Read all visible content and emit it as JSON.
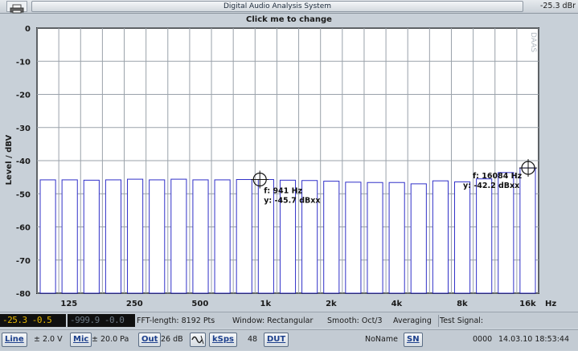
{
  "window": {
    "title": "Digital Audio Analysis System",
    "readout": "-25.3 dBr",
    "icon": "printer-icon"
  },
  "plot": {
    "click_hint": "Click me to change",
    "watermark": "DAAS",
    "colors": {
      "bar": "#3030c8",
      "grid": "#9aa2aa",
      "background": "#ffffff"
    }
  },
  "chart_data": {
    "type": "bar",
    "ylabel": "Level / dBV",
    "xlabel": "",
    "x_unit": "Hz",
    "ylim": [
      -80,
      0
    ],
    "yticks": [
      0,
      -10,
      -20,
      -30,
      -40,
      -50,
      -60,
      -70,
      -80
    ],
    "xtick_labels": [
      "125",
      "250",
      "500",
      "1k",
      "2k",
      "4k",
      "8k",
      "16k"
    ],
    "xscale": "log",
    "grid": true,
    "bands_hz": [
      100,
      125,
      160,
      200,
      250,
      315,
      400,
      500,
      630,
      800,
      1000,
      1250,
      1600,
      2000,
      2500,
      3150,
      4000,
      5000,
      6300,
      8000,
      10000,
      12500,
      16000
    ],
    "values": [
      -45.8,
      -45.8,
      -45.9,
      -45.8,
      -45.6,
      -45.8,
      -45.6,
      -45.8,
      -45.8,
      -45.7,
      -45.7,
      -45.9,
      -46.0,
      -46.2,
      -46.5,
      -46.6,
      -46.6,
      -47.0,
      -46.1,
      -46.4,
      -45.5,
      -43.6,
      -42.2
    ],
    "cursors": [
      {
        "f_text": "f: 941 Hz",
        "y_text": "y: -45.7 dBxx",
        "freq": 941,
        "value": -45.7
      },
      {
        "f_text": "f: 16084 Hz",
        "y_text": "y: -42.2 dBxx",
        "freq": 16084,
        "value": -42.2
      }
    ]
  },
  "status": {
    "lcd1": "-25.3 -0.5",
    "lcd2": "-999.9 -0.0",
    "fft_length": "FFT-length: 8192 Pts",
    "window": "Window: Rectangular",
    "smooth": "Smooth: Oct/3",
    "averaging": "Averaging",
    "test_signal": "Test Signal:"
  },
  "toolbar": {
    "line_button": "Line",
    "line_value": "± 2.0 V",
    "mic_button": "Mic",
    "mic_value": "± 20.0 Pa",
    "out_button": "Out",
    "out_value": "26 dB",
    "wave_icon": "sine-wave-icon",
    "ksps_button": "kSps",
    "ksps_value": "48",
    "dut_button": "DUT",
    "name": "NoName",
    "sn_button": "SN",
    "counter": "0000",
    "datetime": "14.03.10 18:53:44"
  }
}
